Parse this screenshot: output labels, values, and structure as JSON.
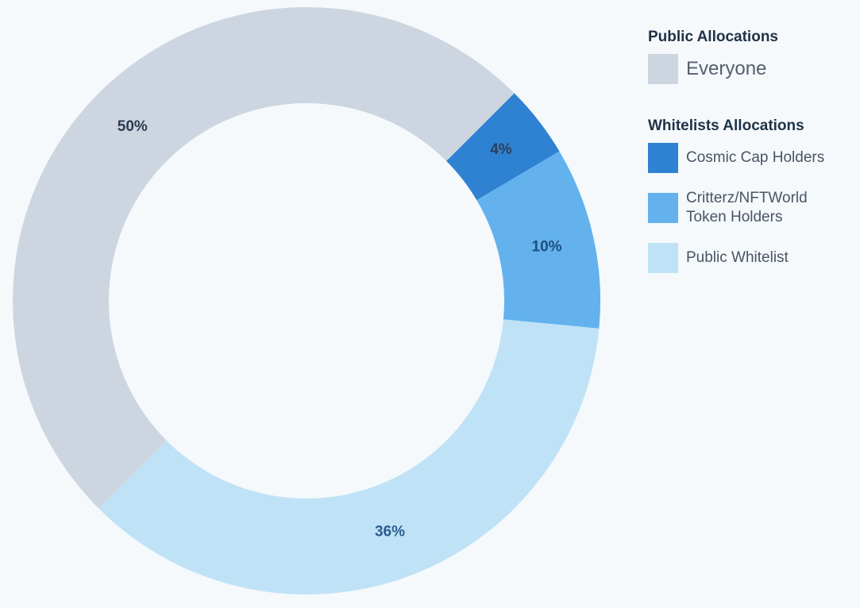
{
  "chart_data": {
    "type": "pie",
    "donut": true,
    "slices": [
      {
        "label": "Cosmic Cap Holders",
        "value": 4,
        "display": "4%",
        "color": "#2f82d1",
        "label_color": "#2a3f5a"
      },
      {
        "label": "Critterz/NFTWorld Token Holders",
        "value": 10,
        "display": "10%",
        "color": "#63b2ee",
        "label_color": "#1f4e7d"
      },
      {
        "label": "Public Whitelist",
        "value": 36,
        "display": "36%",
        "color": "#bfe2f7",
        "label_color": "#2b5c92"
      },
      {
        "label": "Everyone",
        "value": 50,
        "display": "50%",
        "color": "#cdd6e0",
        "label_color": "#2a3a50"
      }
    ]
  },
  "legend": {
    "public": {
      "heading": "Public Allocations",
      "items": [
        {
          "label": "Everyone",
          "color": "#cdd6e0"
        }
      ]
    },
    "whitelists": {
      "heading": "Whitelists Allocations",
      "items": [
        {
          "label": "Cosmic Cap Holders",
          "color": "#2f82d1"
        },
        {
          "label": "Critterz/NFTWorld Token Holders",
          "color": "#63b2ee"
        },
        {
          "label": "Public Whitelist",
          "color": "#bfe2f7"
        }
      ]
    }
  }
}
